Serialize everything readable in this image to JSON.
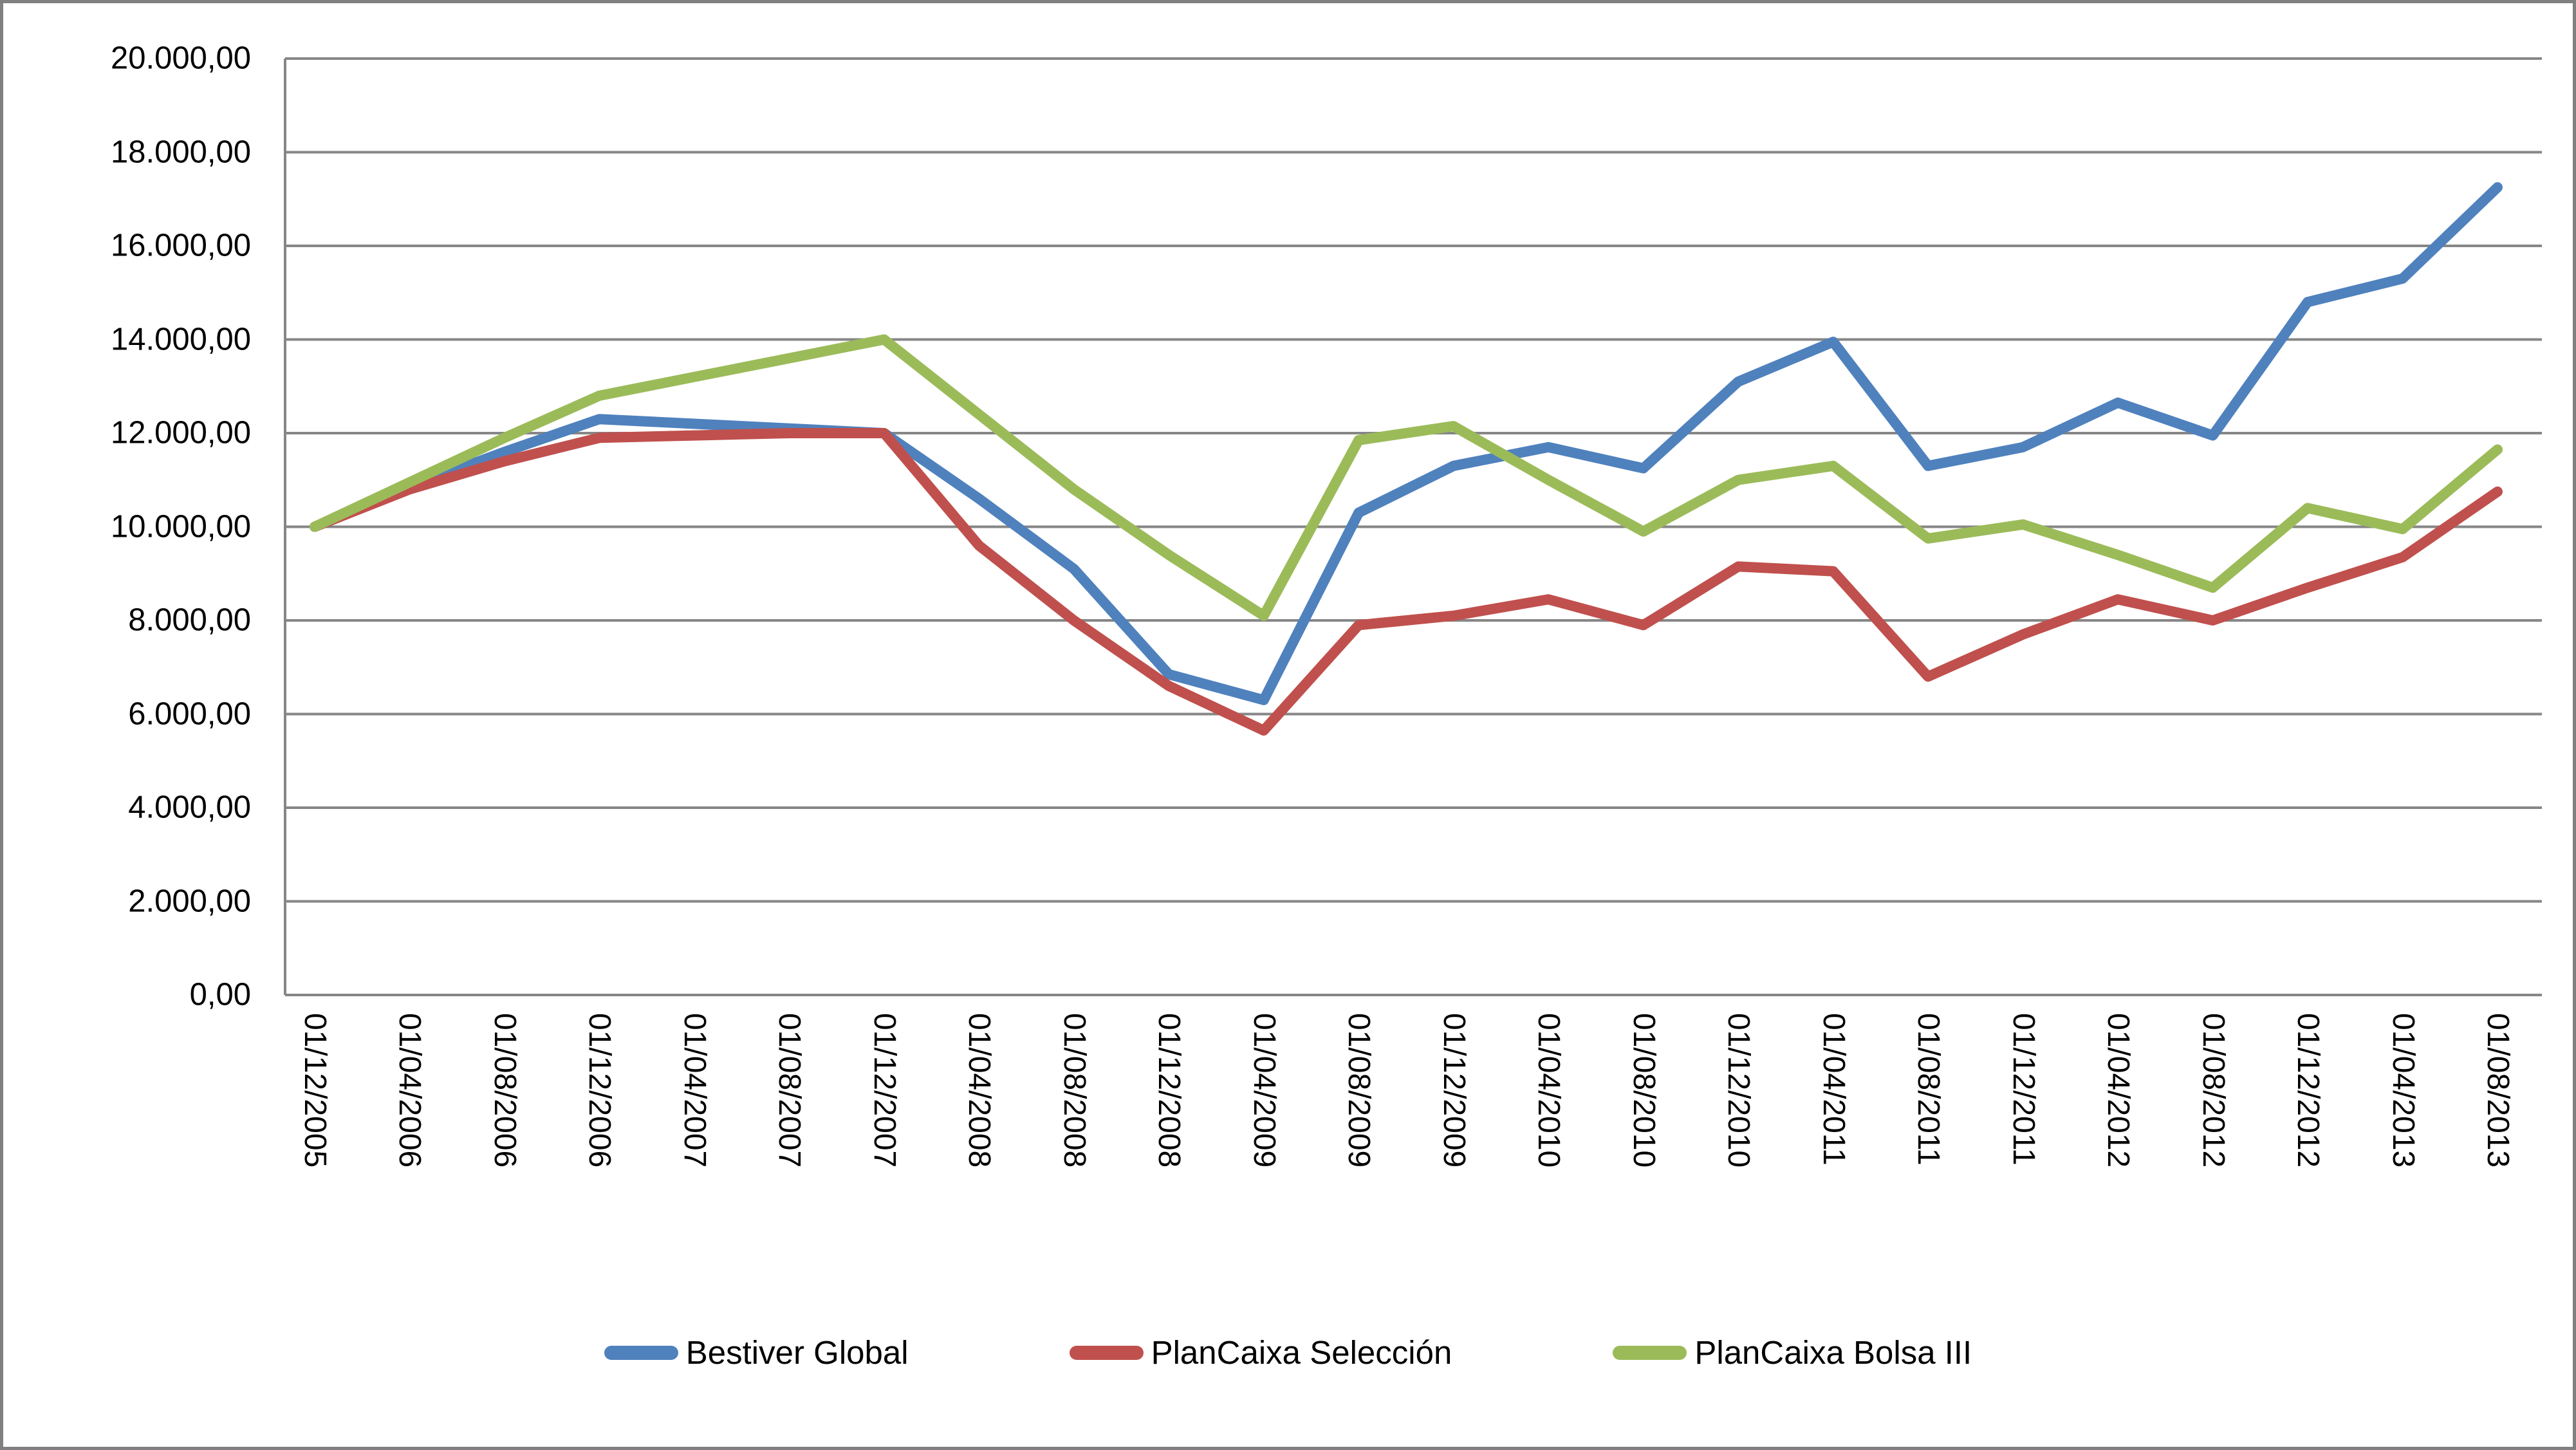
{
  "chart_data": {
    "type": "line",
    "title": "",
    "xlabel": "",
    "ylabel": "",
    "grid": "horizontal",
    "legend_position": "bottom",
    "ylim": [
      0,
      20000
    ],
    "y_step": 2000,
    "y_tick_labels": [
      "0,00",
      "2.000,00",
      "4.000,00",
      "6.000,00",
      "8.000,00",
      "10.000,00",
      "12.000,00",
      "14.000,00",
      "16.000,00",
      "18.000,00",
      "20.000,00"
    ],
    "x_labels": [
      "01/12/2005",
      "01/04/2006",
      "01/08/2006",
      "01/12/2006",
      "01/04/2007",
      "01/08/2007",
      "01/12/2007",
      "01/04/2008",
      "01/08/2008",
      "01/12/2008",
      "01/04/2009",
      "01/08/2009",
      "01/12/2009",
      "01/04/2010",
      "01/08/2010",
      "01/12/2010",
      "01/04/2011",
      "01/08/2011",
      "01/12/2011",
      "01/04/2012",
      "01/08/2012",
      "01/12/2012",
      "01/04/2013",
      "01/08/2013"
    ],
    "series": [
      {
        "name": "Bestiver Global",
        "color": "#4F81BD",
        "values": [
          10000,
          10850,
          11600,
          12300,
          12200,
          12100,
          12000,
          10600,
          9100,
          6850,
          6300,
          10300,
          11300,
          11700,
          11250,
          13100,
          13950,
          11300,
          11700,
          12650,
          11950,
          14800,
          15300,
          17250
        ]
      },
      {
        "name": "PlanCaixa Selección",
        "color": "#C0504D",
        "values": [
          10000,
          10800,
          11400,
          11900,
          11950,
          12000,
          12000,
          9600,
          8000,
          6600,
          5650,
          7900,
          8100,
          8450,
          7900,
          9150,
          9050,
          6800,
          7700,
          8450,
          8000,
          8700,
          9350,
          10750
        ]
      },
      {
        "name": "PlanCaixa Bolsa III",
        "color": "#9BBB59",
        "values": [
          10000,
          10950,
          11900,
          12800,
          13200,
          13600,
          14000,
          12400,
          10800,
          9400,
          8100,
          11850,
          12150,
          11000,
          9900,
          11000,
          11300,
          9750,
          10050,
          9400,
          8700,
          10400,
          9950,
          11650
        ]
      }
    ],
    "gridline_color": "#868686",
    "axis_line_color": "#868686",
    "frame_border_color": "#808080"
  }
}
